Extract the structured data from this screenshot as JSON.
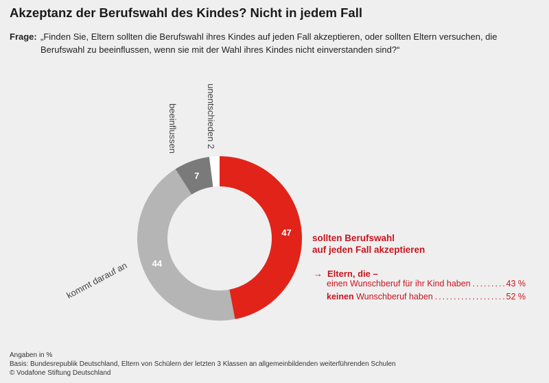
{
  "title": "Akzeptanz der Berufswahl des Kindes? Nicht in jedem Fall",
  "question": {
    "label": "Frage:",
    "text": "„Finden Sie, Eltern sollten die Berufswahl ihres Kindes auf jeden Fall akzeptieren, oder sollten Eltern versuchen, die Berufswahl zu beeinflussen, wenn sie mit der Wahl ihres Kindes nicht einverstanden sind?“"
  },
  "colors": {
    "red": "#e2231a",
    "light_gray": "#b5b5b5",
    "dark_gray": "#7a7a7a",
    "white": "#ffffff",
    "background": "#efefef",
    "accent_text": "#c8141e"
  },
  "chart_data": {
    "type": "pie",
    "unit": "%",
    "series": [
      {
        "name": "sollten Berufswahl auf jeden Fall akzeptieren",
        "value": 47,
        "color": "#e2231a",
        "value_label": "47"
      },
      {
        "name": "kommt darauf an",
        "value": 44,
        "color": "#b5b5b5",
        "value_label": "44"
      },
      {
        "name": "beeinflussen",
        "value": 7,
        "color": "#7a7a7a",
        "value_label": "7"
      },
      {
        "name": "unentschieden",
        "value": 2,
        "color": "#ffffff",
        "value_label": "2"
      }
    ]
  },
  "labels": {
    "accept_line1": "sollten Berufswahl",
    "accept_line2": "auf jeden Fall akzeptieren",
    "depends": "kommt darauf an",
    "influence": "beeinflussen",
    "undecided": "unentschieden 2"
  },
  "breakdown": {
    "arrow": "→",
    "heading": "Eltern, die –",
    "rows": [
      {
        "bold": "",
        "label": "einen Wunschberuf für ihr Kind haben",
        "value": "43 %"
      },
      {
        "bold": "keinen",
        "label": " Wunschberuf haben",
        "value": "52 %"
      }
    ]
  },
  "footer": {
    "line1": "Angaben in %",
    "line2": "Basis: Bundesrepublik Deutschland, Eltern von Schülern der letzten 3 Klassen an allgemeinbildenden weiterführenden Schulen",
    "line3": "© Vodafone Stiftung Deutschland"
  }
}
